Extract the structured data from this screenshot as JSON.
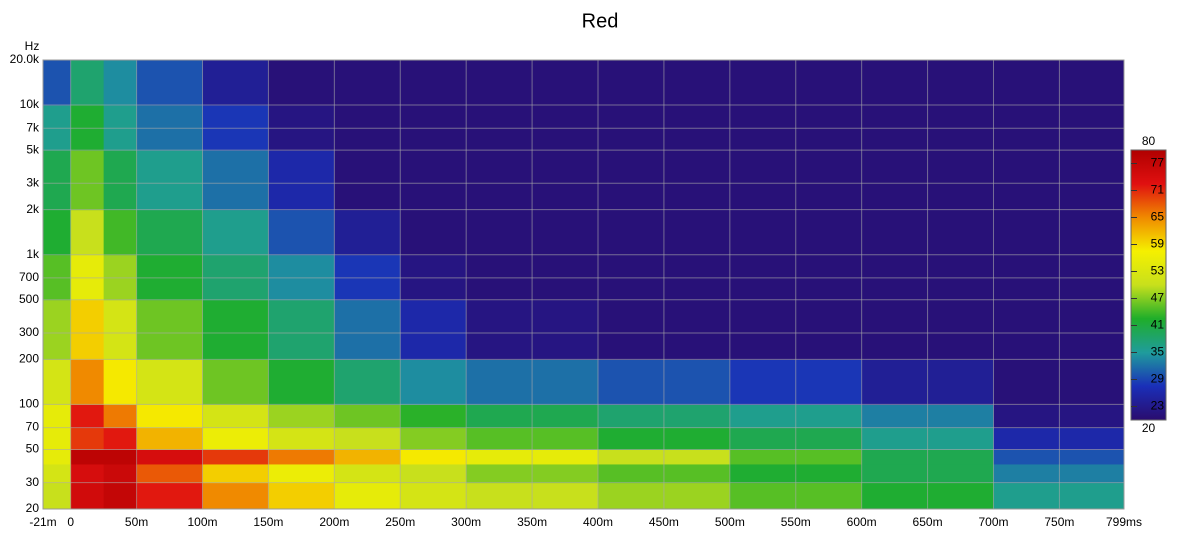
{
  "chart_data": {
    "type": "heatmap",
    "title": "Red",
    "y_label": "Hz",
    "xbins": [
      -21,
      0,
      25,
      50,
      100,
      150,
      200,
      250,
      300,
      400,
      500,
      600,
      700,
      799
    ],
    "ybins": [
      20,
      30,
      40,
      50,
      70,
      100,
      200,
      500,
      1000,
      2000,
      5000,
      10000,
      20000
    ],
    "values": [
      [
        50,
        75,
        77,
        72,
        65,
        60,
        55,
        52,
        50,
        48,
        45,
        42,
        36
      ],
      [
        52,
        74,
        76,
        68,
        60,
        56,
        52,
        50,
        47,
        45,
        42,
        40,
        33
      ],
      [
        55,
        78,
        78,
        74,
        70,
        66,
        62,
        58,
        55,
        50,
        45,
        40,
        30
      ],
      [
        55,
        70,
        72,
        62,
        56,
        52,
        50,
        47,
        45,
        42,
        40,
        36,
        26
      ],
      [
        55,
        72,
        66,
        58,
        52,
        48,
        46,
        43,
        40,
        38,
        36,
        33,
        22
      ],
      [
        52,
        65,
        58,
        52,
        46,
        42,
        38,
        34,
        32,
        30,
        28,
        24,
        21
      ],
      [
        48,
        60,
        52,
        46,
        42,
        38,
        32,
        26,
        22,
        21,
        21,
        21,
        21
      ],
      [
        45,
        55,
        48,
        42,
        38,
        34,
        28,
        22,
        21,
        21,
        21,
        21,
        21
      ],
      [
        42,
        50,
        44,
        40,
        36,
        30,
        24,
        21,
        21,
        21,
        21,
        21,
        21
      ],
      [
        40,
        46,
        40,
        36,
        32,
        26,
        21,
        21,
        21,
        21,
        21,
        21,
        21
      ],
      [
        36,
        42,
        36,
        32,
        28,
        22,
        21,
        21,
        21,
        21,
        21,
        21,
        21
      ],
      [
        30,
        38,
        34,
        30,
        24,
        21,
        21,
        21,
        21,
        21,
        21,
        21,
        21
      ]
    ],
    "xlim": [
      -21,
      799
    ],
    "xticks": [
      {
        "value": -21,
        "label": "-21m"
      },
      0,
      {
        "value": 50,
        "label": "50m"
      },
      {
        "value": 100,
        "label": "100m"
      },
      {
        "value": 150,
        "label": "150m"
      },
      {
        "value": 200,
        "label": "200m"
      },
      {
        "value": 250,
        "label": "250m"
      },
      {
        "value": 300,
        "label": "300m"
      },
      {
        "value": 350,
        "label": "350m"
      },
      {
        "value": 400,
        "label": "400m"
      },
      {
        "value": 450,
        "label": "450m"
      },
      {
        "value": 500,
        "label": "500m"
      },
      {
        "value": 550,
        "label": "550m"
      },
      {
        "value": 600,
        "label": "600m"
      },
      {
        "value": 650,
        "label": "650m"
      },
      {
        "value": 700,
        "label": "700m"
      },
      {
        "value": 750,
        "label": "750m"
      },
      {
        "value": 799,
        "label": "799ms"
      }
    ],
    "ylim": [
      20,
      20000
    ],
    "yscale": "log",
    "yticks": [
      20,
      30,
      50,
      70,
      100,
      200,
      300,
      500,
      700,
      {
        "value": 1000,
        "label": "1k"
      },
      {
        "value": 2000,
        "label": "2k"
      },
      {
        "value": 3000,
        "label": "3k"
      },
      {
        "value": 5000,
        "label": "5k"
      },
      {
        "value": 7000,
        "label": "7k"
      },
      {
        "value": 10000,
        "label": "10k"
      },
      {
        "value": 20000,
        "label": "20.0k"
      }
    ],
    "zlim": [
      20,
      80
    ],
    "zticks": [
      23,
      29,
      35,
      41,
      47,
      53,
      59,
      65,
      71,
      77
    ],
    "colors": [
      "#2a0c6e",
      "#1a2fb8",
      "#1f9c9c",
      "#1fae2a",
      "#c8e01c",
      "#f5f000",
      "#f08a00",
      "#e01010",
      "#b00000"
    ],
    "grid": true
  }
}
